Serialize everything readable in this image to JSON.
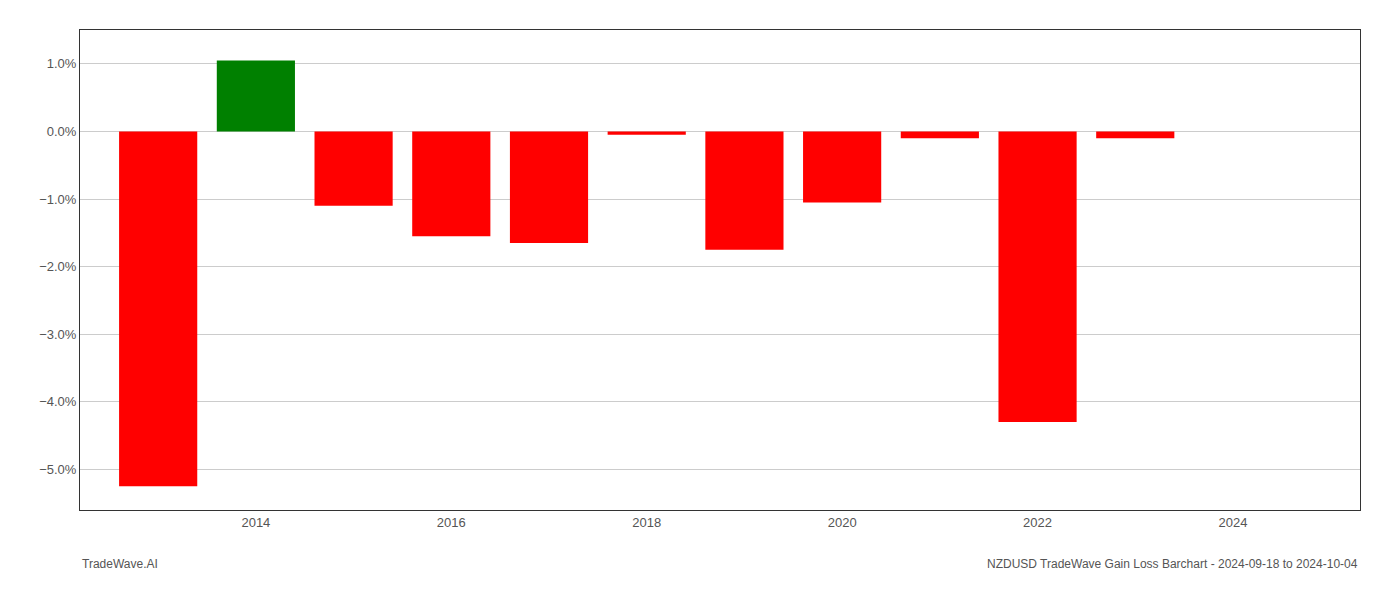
{
  "chart_data": {
    "type": "bar",
    "x": [
      2013,
      2014,
      2015,
      2016,
      2017,
      2018,
      2019,
      2020,
      2021,
      2022,
      2023
    ],
    "values": [
      -5.25,
      1.05,
      -1.1,
      -1.55,
      -1.65,
      -0.05,
      -1.75,
      -1.05,
      -0.1,
      -4.3,
      -0.1
    ],
    "colors": [
      "#ff0000",
      "#008000",
      "#ff0000",
      "#ff0000",
      "#ff0000",
      "#ff0000",
      "#ff0000",
      "#ff0000",
      "#ff0000",
      "#ff0000",
      "#ff0000"
    ],
    "xlim": [
      2012.2,
      2025.3
    ],
    "xticks": [
      2014,
      2016,
      2018,
      2020,
      2022,
      2024
    ],
    "ylim": [
      -5.6,
      1.5
    ],
    "yticks": [
      {
        "value": 1.0,
        "label": "1.0%"
      },
      {
        "value": 0.0,
        "label": "0.0%"
      },
      {
        "value": -1.0,
        "label": "−1.0%"
      },
      {
        "value": -2.0,
        "label": "−2.0%"
      },
      {
        "value": -3.0,
        "label": "−3.0%"
      },
      {
        "value": -4.0,
        "label": "−4.0%"
      },
      {
        "value": -5.0,
        "label": "−5.0%"
      }
    ],
    "grid": true,
    "annotations": [
      "TradeWave.AI",
      "NZDUSD TradeWave Gain Loss Barchart - 2024-09-18 to 2024-10-04"
    ]
  }
}
